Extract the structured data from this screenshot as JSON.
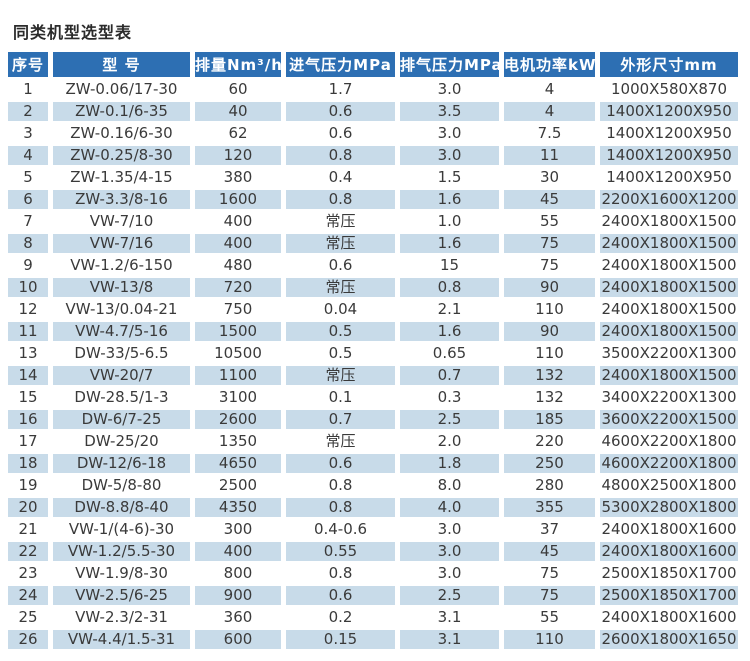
{
  "page": {
    "title": "同类机型选型表"
  },
  "colors": {
    "header_bg": "#2d6fb3",
    "header_text": "#ffffff",
    "stripe_bg": "#c8dbe9",
    "row_bg": "#ffffff",
    "body_text": "#3a3a3a",
    "title_text": "#2b2b2b"
  },
  "table": {
    "columns": [
      "序号",
      "型 号",
      "排量Nm³/h",
      "进气压力MPa",
      "排气压力MPa",
      "电机功率kW",
      "外形尺寸mm"
    ],
    "column_keys": [
      "serial",
      "model",
      "displacement",
      "inlet_pressure",
      "exhaust_pressure",
      "motor_power",
      "dimensions"
    ],
    "rows": [
      [
        "1",
        "ZW-0.06/17-30",
        "60",
        "1.7",
        "3.0",
        "4",
        "1000X580X870"
      ],
      [
        "2",
        "ZW-0.1/6-35",
        "40",
        "0.6",
        "3.5",
        "4",
        "1400X1200X950"
      ],
      [
        "3",
        "ZW-0.16/6-30",
        "62",
        "0.6",
        "3.0",
        "7.5",
        "1400X1200X950"
      ],
      [
        "4",
        "ZW-0.25/8-30",
        "120",
        "0.8",
        "3.0",
        "11",
        "1400X1200X950"
      ],
      [
        "5",
        "ZW-1.35/4-15",
        "380",
        "0.4",
        "1.5",
        "30",
        "1400X1200X950"
      ],
      [
        "6",
        "ZW-3.3/8-16",
        "1600",
        "0.8",
        "1.6",
        "45",
        "2200X1600X1200"
      ],
      [
        "7",
        "VW-7/10",
        "400",
        "常压",
        "1.0",
        "55",
        "2400X1800X1500"
      ],
      [
        "8",
        "VW-7/16",
        "400",
        "常压",
        "1.6",
        "75",
        "2400X1800X1500"
      ],
      [
        "9",
        "VW-1.2/6-150",
        "480",
        "0.6",
        "15",
        "75",
        "2400X1800X1500"
      ],
      [
        "10",
        "VW-13/8",
        "720",
        "常压",
        "0.8",
        "90",
        "2400X1800X1500"
      ],
      [
        "12",
        "VW-13/0.04-21",
        "750",
        "0.04",
        "2.1",
        "110",
        "2400X1800X1500"
      ],
      [
        "11",
        "VW-4.7/5-16",
        "1500",
        "0.5",
        "1.6",
        "90",
        "2400X1800X1500"
      ],
      [
        "13",
        "DW-33/5-6.5",
        "10500",
        "0.5",
        "0.65",
        "110",
        "3500X2200X1300"
      ],
      [
        "14",
        "VW-20/7",
        "1100",
        "常压",
        "0.7",
        "132",
        "2400X1800X1500"
      ],
      [
        "15",
        "DW-28.5/1-3",
        "3100",
        "0.1",
        "0.3",
        "132",
        "3400X2200X1300"
      ],
      [
        "16",
        "DW-6/7-25",
        "2600",
        "0.7",
        "2.5",
        "185",
        "3600X2200X1500"
      ],
      [
        "17",
        "DW-25/20",
        "1350",
        "常压",
        "2.0",
        "220",
        "4600X2200X1800"
      ],
      [
        "18",
        "DW-12/6-18",
        "4650",
        "0.6",
        "1.8",
        "250",
        "4600X2200X1800"
      ],
      [
        "19",
        "DW-5/8-80",
        "2500",
        "0.8",
        "8.0",
        "280",
        "4800X2500X1800"
      ],
      [
        "20",
        "DW-8.8/8-40",
        "4350",
        "0.8",
        "4.0",
        "355",
        "5300X2800X1800"
      ],
      [
        "21",
        "VW-1/(4-6)-30",
        "300",
        "0.4-0.6",
        "3.0",
        "37",
        "2400X1800X1600"
      ],
      [
        "22",
        "VW-1.2/5.5-30",
        "400",
        "0.55",
        "3.0",
        "45",
        "2400X1800X1600"
      ],
      [
        "23",
        "VW-1.9/8-30",
        "800",
        "0.8",
        "3.0",
        "75",
        "2500X1850X1700"
      ],
      [
        "24",
        "VW-2.5/6-25",
        "900",
        "0.6",
        "2.5",
        "75",
        "2500X1850X1700"
      ],
      [
        "25",
        "VW-2.3/2-31",
        "360",
        "0.2",
        "3.1",
        "55",
        "2400X1800X1600"
      ],
      [
        "26",
        "VW-4.4/1.5-31",
        "600",
        "0.15",
        "3.1",
        "110",
        "2600X1800X1650"
      ]
    ]
  }
}
